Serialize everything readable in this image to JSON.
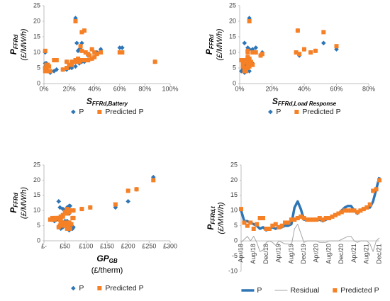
{
  "chart_data": [
    {
      "type": "scatter",
      "y_label": {
        "main": "P",
        "sub": "FFRd",
        "unit": "(£/MW/h)"
      },
      "x_label": {
        "main": "S",
        "sub": "FFRd,Battery"
      },
      "xlim": [
        0,
        100
      ],
      "xticks": [
        {
          "value": 0,
          "label": "0%"
        },
        {
          "value": 20,
          "label": "20%"
        },
        {
          "value": 40,
          "label": "40%"
        },
        {
          "value": 60,
          "label": "60%"
        },
        {
          "value": 80,
          "label": "80%"
        },
        {
          "value": 100,
          "label": "100%"
        }
      ],
      "ylim": [
        0,
        25
      ],
      "yticks": [
        0,
        5,
        10,
        15,
        20,
        25
      ],
      "series": [
        {
          "name": "P",
          "color": "#2e75b6",
          "marker": "diamond",
          "x": [
            1,
            2,
            1,
            3,
            1,
            2,
            8,
            10,
            5,
            3,
            2,
            4,
            15,
            18,
            20,
            22,
            25,
            28,
            26,
            27,
            30,
            22,
            24,
            18,
            88,
            25,
            28,
            32,
            35,
            38,
            40,
            36,
            42,
            45,
            60,
            62,
            40,
            35,
            33,
            30,
            38,
            29,
            30,
            32,
            25
          ],
          "values": [
            10,
            6.5,
            6.5,
            6,
            5.5,
            5,
            4,
            4.5,
            3.5,
            4,
            4.5,
            4,
            4.5,
            4.5,
            5,
            5,
            5.5,
            11,
            13,
            10.5,
            7,
            7,
            7,
            7,
            7,
            7,
            6.5,
            7,
            7.5,
            8,
            8.5,
            9,
            10,
            11,
            11.5,
            11.5,
            10,
            9,
            10,
            10.5,
            11,
            11,
            13,
            17,
            21
          ]
        },
        {
          "name": "Predicted P",
          "color": "#f58025",
          "marker": "square",
          "x": [
            1,
            2,
            1,
            3,
            1,
            2,
            8,
            10,
            5,
            3,
            2,
            4,
            15,
            18,
            20,
            22,
            25,
            28,
            26,
            27,
            30,
            22,
            24,
            18,
            88,
            25,
            28,
            32,
            35,
            38,
            40,
            36,
            42,
            45,
            60,
            62,
            40,
            35,
            33,
            30,
            38,
            29,
            30,
            32,
            25
          ],
          "values": [
            10.5,
            6,
            5,
            6,
            4,
            5.5,
            7.5,
            7.5,
            4,
            4,
            5,
            5.5,
            4.5,
            5,
            6,
            6,
            7,
            7,
            7.5,
            8,
            7.5,
            7,
            7,
            7,
            7,
            7.5,
            7,
            7.5,
            7.5,
            8,
            8.5,
            9,
            9.5,
            10,
            10,
            10,
            10,
            9.5,
            10,
            10.5,
            11,
            12,
            16.5,
            17,
            20
          ]
        }
      ]
    },
    {
      "type": "scatter",
      "y_label": {
        "main": "P",
        "sub": "FFRd",
        "unit": "(£/MW/h)"
      },
      "x_label": {
        "main": "S",
        "sub": "FFRd,Load Response"
      },
      "xlim": [
        0,
        80
      ],
      "xticks": [
        {
          "value": 0,
          "label": "0%"
        },
        {
          "value": 20,
          "label": "20%"
        },
        {
          "value": 40,
          "label": "40%"
        },
        {
          "value": 60,
          "label": "60%"
        },
        {
          "value": 80,
          "label": "80%"
        }
      ],
      "ylim": [
        0,
        25
      ],
      "yticks": [
        0,
        5,
        10,
        15,
        20,
        25
      ],
      "series": [
        {
          "name": "P",
          "color": "#2e75b6",
          "marker": "diamond",
          "x": [
            5,
            8,
            4,
            6,
            3,
            2,
            1,
            2,
            3,
            4,
            5,
            6,
            3,
            4,
            5,
            2,
            3,
            6,
            3,
            5,
            4,
            3,
            2,
            4,
            6,
            5,
            7,
            3,
            4,
            6,
            5,
            13,
            14,
            8,
            10,
            5,
            35,
            37,
            44,
            47,
            40,
            60,
            52,
            36,
            6
          ],
          "values": [
            10,
            6.5,
            6.5,
            6,
            5.5,
            5,
            4,
            4.5,
            3.5,
            4,
            4.5,
            4,
            4.5,
            4.5,
            5,
            5,
            5.5,
            11,
            13,
            10.5,
            7,
            7,
            7,
            7,
            7,
            7,
            6.5,
            7,
            7.5,
            8,
            8.5,
            9,
            10,
            11,
            11.5,
            11.5,
            10,
            9,
            10,
            10.5,
            11,
            11,
            13,
            17,
            21
          ]
        },
        {
          "name": "Predicted P",
          "color": "#f58025",
          "marker": "square",
          "x": [
            5,
            8,
            4,
            6,
            3,
            2,
            1,
            2,
            3,
            4,
            5,
            6,
            3,
            4,
            5,
            2,
            3,
            6,
            3,
            5,
            4,
            3,
            2,
            4,
            6,
            5,
            7,
            3,
            4,
            6,
            5,
            13,
            14,
            8,
            10,
            5,
            35,
            37,
            44,
            47,
            40,
            60,
            52,
            36,
            6
          ],
          "values": [
            10.5,
            6,
            5,
            6,
            4,
            5.5,
            7.5,
            7.5,
            4,
            4,
            5,
            5.5,
            4.5,
            5,
            6,
            6,
            7,
            7,
            7.5,
            8,
            7.5,
            7,
            7,
            7,
            7,
            7.5,
            7,
            7.5,
            7.5,
            8,
            8.5,
            9,
            9.5,
            10,
            10,
            10,
            10,
            9.5,
            10,
            10.5,
            11,
            12,
            16.5,
            17,
            20
          ]
        }
      ]
    },
    {
      "type": "scatter",
      "y_label": {
        "main": "P",
        "sub": "FFRd",
        "unit": "(£/MW/h)"
      },
      "x_label": {
        "main": "GP",
        "sub": "GB",
        "unit": "(£/therm)"
      },
      "xlim": [
        0,
        300
      ],
      "xticks": [
        {
          "value": 0,
          "label": "£-"
        },
        {
          "value": 50,
          "label": "£50"
        },
        {
          "value": 100,
          "label": "£100"
        },
        {
          "value": 150,
          "label": "£150"
        },
        {
          "value": 200,
          "label": "£200"
        },
        {
          "value": 250,
          "label": "£250"
        },
        {
          "value": 300,
          "label": "£300"
        }
      ],
      "ylim": [
        0,
        25
      ],
      "yticks": [
        0,
        5,
        10,
        15,
        20,
        25
      ],
      "series": [
        {
          "name": "P",
          "color": "#2e75b6",
          "marker": "diamond",
          "x": [
            55,
            50,
            55,
            60,
            62,
            65,
            68,
            70,
            60,
            55,
            45,
            40,
            35,
            38,
            40,
            42,
            40,
            38,
            35,
            45,
            30,
            25,
            20,
            18,
            15,
            20,
            25,
            28,
            35,
            40,
            45,
            55,
            50,
            55,
            60,
            62,
            55,
            60,
            70,
            90,
            110,
            170,
            200,
            220,
            260
          ],
          "values": [
            10,
            6.5,
            6.5,
            6,
            5.5,
            5,
            4,
            4.5,
            3.5,
            4,
            4.5,
            4,
            4.5,
            4.5,
            5,
            5,
            5.5,
            11,
            13,
            10.5,
            7,
            7,
            7,
            7,
            7,
            7,
            6.5,
            7,
            7.5,
            8,
            8.5,
            9,
            10,
            11,
            11.5,
            11.5,
            10,
            9,
            10,
            10.5,
            11,
            11,
            13,
            17,
            21
          ]
        },
        {
          "name": "Predicted P",
          "color": "#f58025",
          "marker": "square",
          "x": [
            55,
            50,
            55,
            60,
            62,
            65,
            68,
            70,
            60,
            55,
            45,
            40,
            35,
            38,
            40,
            42,
            40,
            38,
            35,
            45,
            30,
            25,
            20,
            18,
            15,
            20,
            25,
            28,
            35,
            40,
            45,
            55,
            50,
            55,
            60,
            62,
            55,
            60,
            70,
            90,
            110,
            170,
            200,
            220,
            260
          ],
          "values": [
            10.5,
            6,
            5,
            6,
            4,
            5.5,
            7.5,
            7.5,
            4,
            4,
            5,
            5.5,
            4.5,
            5,
            6,
            6,
            7,
            7,
            7.5,
            8,
            7.5,
            7,
            7,
            7,
            7,
            7.5,
            7,
            7.5,
            7.5,
            8,
            8.5,
            9,
            9.5,
            10,
            10,
            10,
            10,
            9.5,
            10,
            10.5,
            11,
            12,
            16.5,
            17,
            20
          ]
        }
      ]
    },
    {
      "type": "line",
      "y_label": {
        "main": "P",
        "sub": "FFRd,t",
        "unit": "(£/MW/h)"
      },
      "categories": [
        "Apr/18",
        null,
        null,
        null,
        "Aug/18",
        null,
        null,
        null,
        "Dec/18",
        null,
        null,
        null,
        "Apr/19",
        null,
        null,
        null,
        "Aug/19",
        null,
        null,
        null,
        "Dec/19",
        null,
        null,
        null,
        "Apr/20",
        null,
        null,
        null,
        "Aug/20",
        null,
        null,
        null,
        "Dec/20",
        null,
        null,
        null,
        "Apr/21",
        null,
        null,
        null,
        "Aug/21",
        null,
        null,
        null,
        "Dec/21"
      ],
      "ylim": [
        -10,
        25
      ],
      "yticks": [
        -10,
        -5,
        0,
        5,
        10,
        15,
        20,
        25
      ],
      "series": [
        {
          "name": "P",
          "color": "#2e75b6",
          "marker": "line",
          "line_style": "bold",
          "values": [
            10,
            6.5,
            6.5,
            6,
            5.5,
            5,
            4,
            4.5,
            3.5,
            4,
            4.5,
            4,
            4.5,
            4.5,
            5,
            5,
            5.5,
            11,
            13,
            10.5,
            7,
            7,
            7,
            7,
            7,
            7,
            6.5,
            7,
            7.5,
            8,
            8.5,
            9,
            10,
            11,
            11.5,
            11.5,
            10,
            9,
            10,
            10.5,
            11,
            11,
            13,
            17,
            21
          ]
        },
        {
          "name": "Residual",
          "color": "#a6a6a6",
          "marker": "line",
          "line_style": "thin",
          "values": [
            -0.5,
            0.5,
            1.5,
            0,
            1.5,
            -0.5,
            -3.5,
            -3,
            -0.5,
            0,
            -0.5,
            -1.5,
            0,
            -0.5,
            -1,
            -1,
            -1.5,
            4,
            5.5,
            2.5,
            -0.5,
            0,
            0,
            0,
            0,
            -0.5,
            -0.5,
            -0.5,
            0,
            0,
            0,
            0,
            0.5,
            1,
            1.5,
            1.5,
            0,
            -0.5,
            0,
            0,
            0,
            -1,
            -3.5,
            0,
            1
          ]
        },
        {
          "name": "Predicted P",
          "color": "#f58025",
          "marker": "square",
          "values": [
            10.5,
            6,
            5,
            6,
            4,
            5.5,
            7.5,
            7.5,
            4,
            4,
            5,
            5.5,
            4.5,
            5,
            6,
            6,
            7,
            7,
            7.5,
            8,
            7.5,
            7,
            7,
            7,
            7,
            7.5,
            7,
            7.5,
            7.5,
            8,
            8.5,
            9,
            9.5,
            10,
            10,
            10,
            10,
            9.5,
            10,
            10.5,
            11,
            12,
            16.5,
            17,
            20
          ]
        }
      ]
    }
  ]
}
